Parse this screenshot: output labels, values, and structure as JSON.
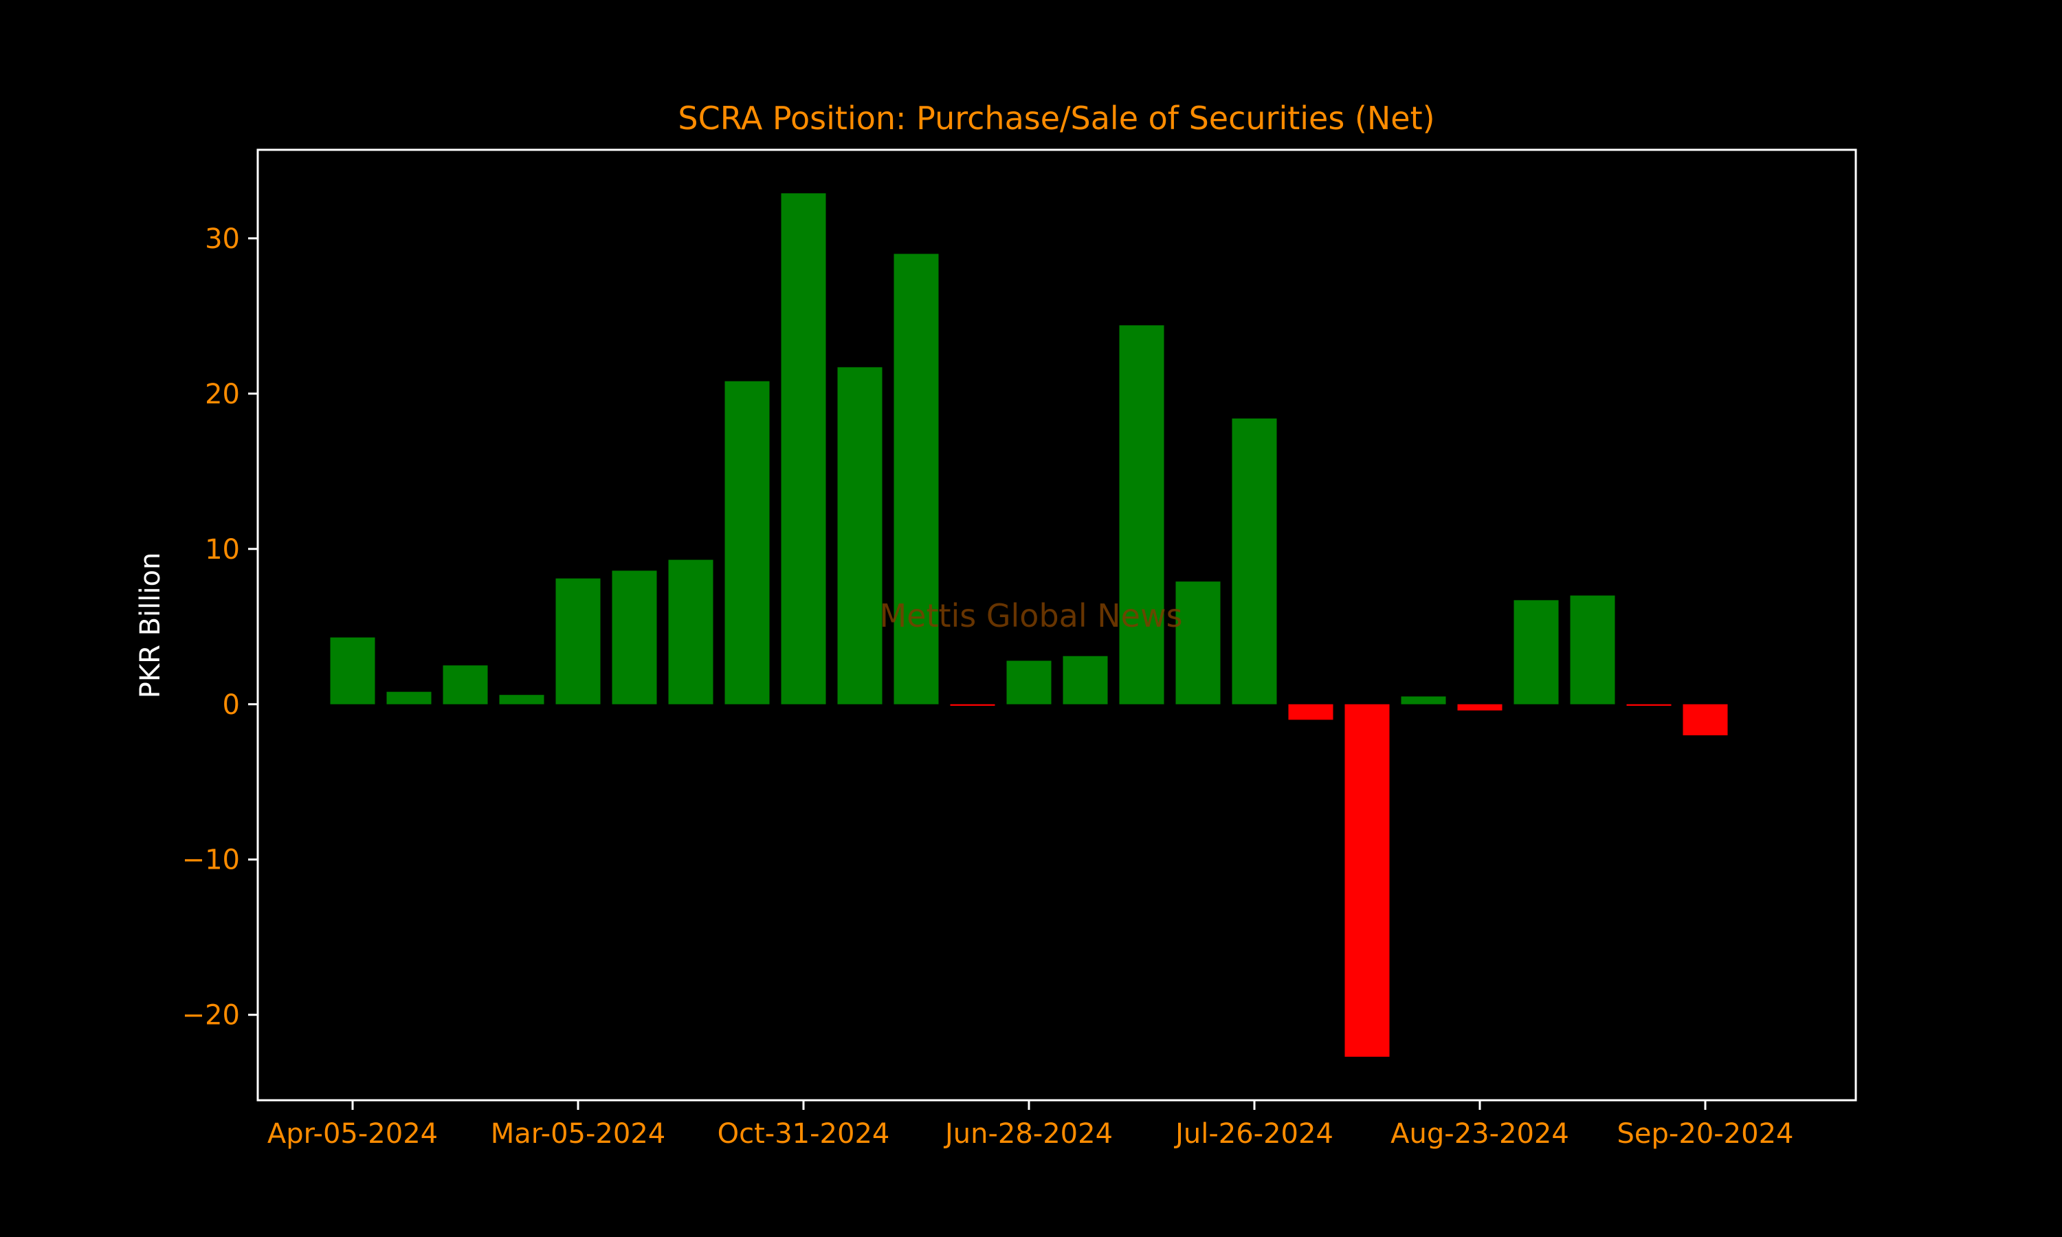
{
  "chart_data": {
    "type": "bar",
    "title": "SCRA Position: Purchase/Sale of Securities (Net)",
    "xlabel": "",
    "ylabel": "PKR Billion",
    "watermark": "Mettis Global News",
    "ylim": [
      -25.5,
      35.7
    ],
    "yticks": [
      -20,
      -10,
      0,
      10,
      20,
      30
    ],
    "ytick_labels": [
      "−20",
      "−10",
      "0",
      "10",
      "20",
      "30"
    ],
    "xtick_labels": [
      "Apr-05-2024",
      "Mar-05-2024",
      "Oct-31-2024",
      "Jun-28-2024",
      "Jul-26-2024",
      "Aug-23-2024",
      "Sep-20-2024"
    ],
    "xtick_every": 4,
    "values": [
      4.3,
      0.8,
      2.5,
      0.6,
      8.1,
      8.6,
      9.3,
      20.8,
      32.9,
      21.7,
      29.0,
      -0.1,
      2.8,
      3.1,
      24.4,
      7.9,
      18.4,
      -1.0,
      -22.7,
      0.5,
      -0.4,
      6.7,
      7.0,
      -0.1,
      -2.0
    ],
    "colors": {
      "positive": "#008000",
      "negative": "#ff0000",
      "frame": "#ffffff",
      "text": "#ff8c00",
      "background": "#000000"
    },
    "grid": false,
    "legend": "none"
  }
}
